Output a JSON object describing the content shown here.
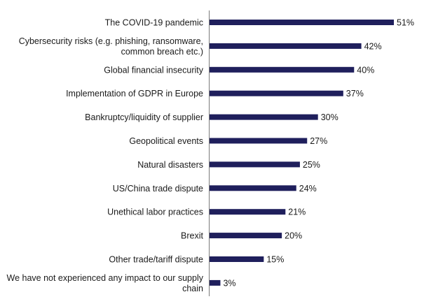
{
  "chart_data": {
    "type": "bar",
    "orientation": "horizontal",
    "title": "",
    "xlabel": "",
    "ylabel": "",
    "xlim": [
      0,
      51
    ],
    "grid": false,
    "legend": "none",
    "bar_color": "#1f1f5c",
    "value_suffix": "%",
    "categories": [
      [
        "The COVID-19 pandemic"
      ],
      [
        "Cybersecurity risks (e.g. phishing, ransomware,",
        "common breach etc.)"
      ],
      [
        "Global financial insecurity"
      ],
      [
        "Implementation of GDPR in Europe"
      ],
      [
        "Bankruptcy/liquidity of supplier"
      ],
      [
        "Geopolitical events"
      ],
      [
        "Natural disasters"
      ],
      [
        "US/China trade dispute"
      ],
      [
        "Unethical labor practices"
      ],
      [
        "Brexit"
      ],
      [
        "Other trade/tariff dispute"
      ],
      [
        "We have not experienced any impact to our supply",
        "chain"
      ]
    ],
    "values": [
      51,
      42,
      40,
      37,
      30,
      27,
      25,
      24,
      21,
      20,
      15,
      3
    ]
  }
}
